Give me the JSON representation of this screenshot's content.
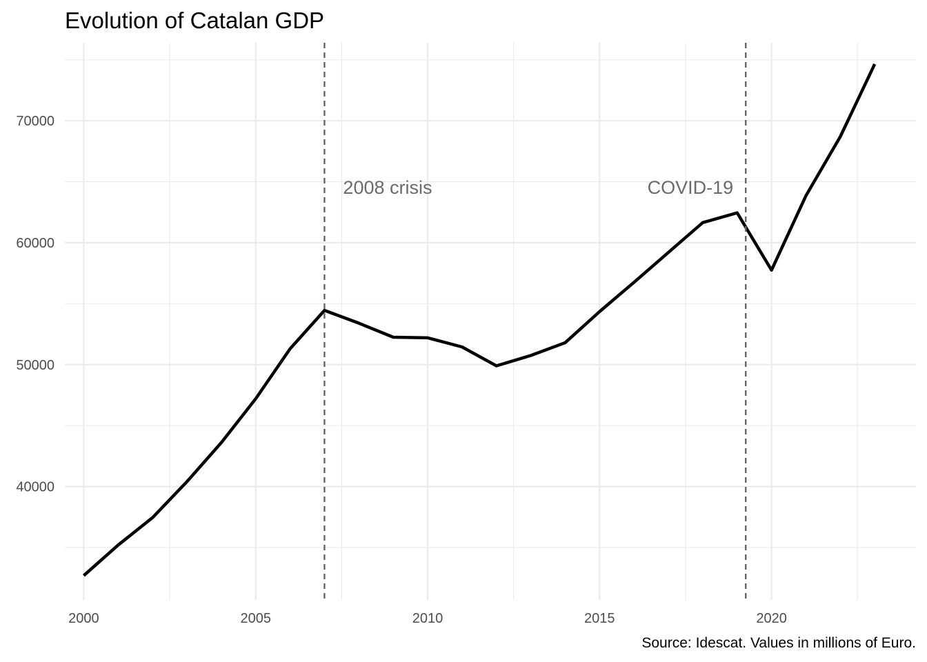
{
  "chart_data": {
    "type": "line",
    "title": "Evolution of Catalan GDP",
    "xlabel": "",
    "ylabel": "",
    "caption": "Source: Idescat. Values in millions of Euro.",
    "x": [
      2000,
      2001,
      2002,
      2003,
      2004,
      2005,
      2006,
      2007,
      2008,
      2009,
      2010,
      2011,
      2012,
      2013,
      2014,
      2015,
      2016,
      2017,
      2018,
      2019,
      2020,
      2021,
      2022,
      2023
    ],
    "series": [
      {
        "values": [
          32700,
          35200,
          37450,
          40400,
          43600,
          47200,
          51300,
          54450,
          53400,
          52250,
          52200,
          51450,
          49900,
          50750,
          51800,
          54350,
          56750,
          59200,
          61650,
          62450,
          57750,
          63850,
          68700,
          74650
        ],
        "color": "#000000"
      }
    ],
    "xlim": [
      1999.45,
      2024.2
    ],
    "ylim": [
      30700,
      76400
    ],
    "x_ticks": [
      2000,
      2005,
      2010,
      2015,
      2020
    ],
    "y_ticks": [
      40000,
      50000,
      60000,
      70000
    ],
    "x_tick_labels": [
      "2000",
      "2005",
      "2010",
      "2015",
      "2020"
    ],
    "y_tick_labels": [
      "40000",
      "50000",
      "60000",
      "70000"
    ],
    "x_minor_ticks": [
      2002.5,
      2007.5,
      2012.5,
      2017.5,
      2022.5
    ],
    "y_minor_ticks": [
      35000,
      45000,
      55000,
      65000,
      75000
    ],
    "grid": true,
    "events": [
      {
        "x": 2007,
        "label": "2008 crisis",
        "y": 64800,
        "anchor": "start"
      },
      {
        "x": 2019.25,
        "label": "COVID-19",
        "y": 64800,
        "anchor": "end"
      }
    ],
    "colors": {
      "grid": "#ebebeb",
      "event_line": "#666666",
      "annotation_text": "#6b6b6b",
      "tick_text": "#4d4d4d"
    }
  }
}
